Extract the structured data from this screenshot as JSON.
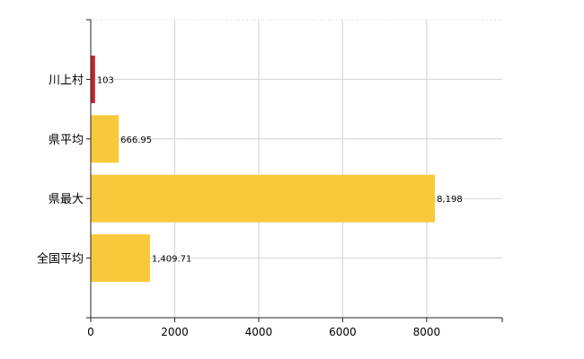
{
  "chart_data": {
    "type": "bar",
    "orientation": "horizontal",
    "categories": [
      "川上村",
      "県平均",
      "県最大",
      "全国平均"
    ],
    "values": [
      103,
      666.95,
      8198,
      1409.71
    ],
    "value_labels": [
      "103",
      "666.95",
      "8,198",
      "1,409.71"
    ],
    "bar_colors": [
      "#c1272d",
      "#f9c93b",
      "#f9c93b",
      "#f9c93b"
    ],
    "xlim": [
      0,
      9800
    ],
    "x_ticks": [
      0,
      2000,
      4000,
      6000,
      8000
    ],
    "x_tick_labels": [
      "0",
      "2000",
      "4000",
      "6000",
      "8000"
    ],
    "grid": true,
    "title": "",
    "xlabel": "",
    "ylabel": ""
  },
  "colors": {
    "highlight": "#c1272d",
    "bar": "#f9c93b",
    "grid": "#d4d4d4",
    "axis": "#222222"
  }
}
